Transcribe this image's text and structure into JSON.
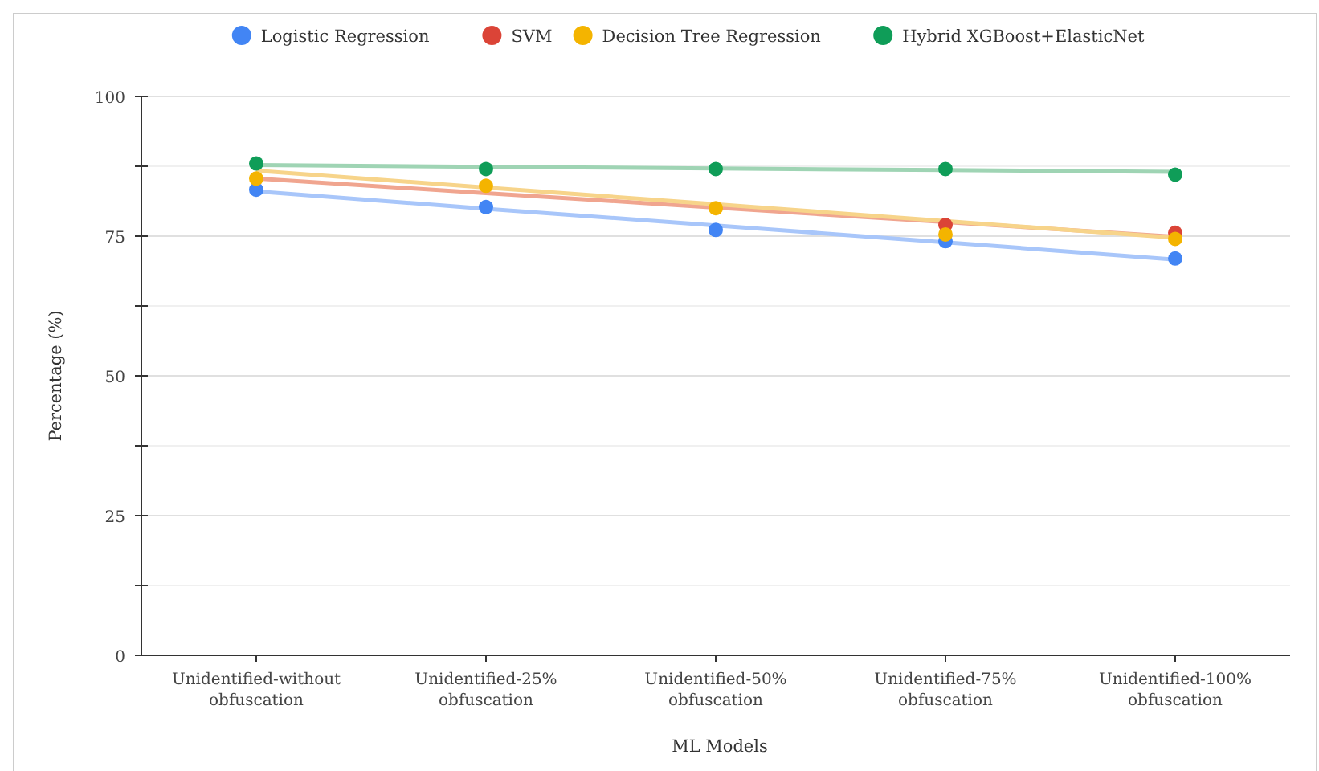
{
  "chart_data": {
    "type": "scatter",
    "xlabel": "ML Models",
    "ylabel": "Percentage (%)",
    "categories": [
      "Unidentified-without obfuscation",
      "Unidentified-25% obfuscation",
      "Unidentified-50% obfuscation",
      "Unidentified-75% obfuscation",
      "Unidentified-100% obfuscation"
    ],
    "ylim": [
      0,
      100
    ],
    "yticks": [
      0,
      {
        "value": 12.5,
        "label": null
      },
      25,
      {
        "value": 37.5,
        "label": null
      },
      50,
      {
        "value": 62.5,
        "label": null
      },
      75,
      {
        "value": 87.5,
        "label": null
      },
      100
    ],
    "grid": "y",
    "legend": "top",
    "marker": "circle",
    "series": [
      {
        "name": "Logistic Regression",
        "color": "#4285f4",
        "values": [
          83.3,
          80.2,
          76.1,
          74.1,
          71
        ]
      },
      {
        "name": "SVM",
        "color": "#db4437",
        "values": [
          null,
          null,
          null,
          77,
          75.6
        ]
      },
      {
        "name": "Decision Tree Regression",
        "color": "#f4b400",
        "values": [
          85.3,
          84,
          80,
          75.3,
          74.5
        ]
      },
      {
        "name": "Hybrid XGBoost+ElasticNet",
        "color": "#0f9d58",
        "values": [
          88,
          87,
          87,
          87,
          86
        ]
      },
      {
        "type": "line",
        "marker": "none",
        "color": "#a8c6fa",
        "values": [
          83,
          79.9,
          76.9,
          73.9,
          70.8
        ]
      },
      {
        "type": "line",
        "marker": "none",
        "color": "#f0a58f",
        "values": [
          85.3,
          82.7,
          80.1,
          77.5,
          74.9
        ]
      },
      {
        "type": "line",
        "marker": "none",
        "color": "#f7d48a",
        "values": [
          86.7,
          83.7,
          80.7,
          77.7,
          74.7
        ]
      },
      {
        "type": "line",
        "marker": "none",
        "color": "#9fd4b4",
        "values": [
          87.7,
          87.4,
          87.1,
          86.8,
          86.5
        ]
      }
    ]
  }
}
